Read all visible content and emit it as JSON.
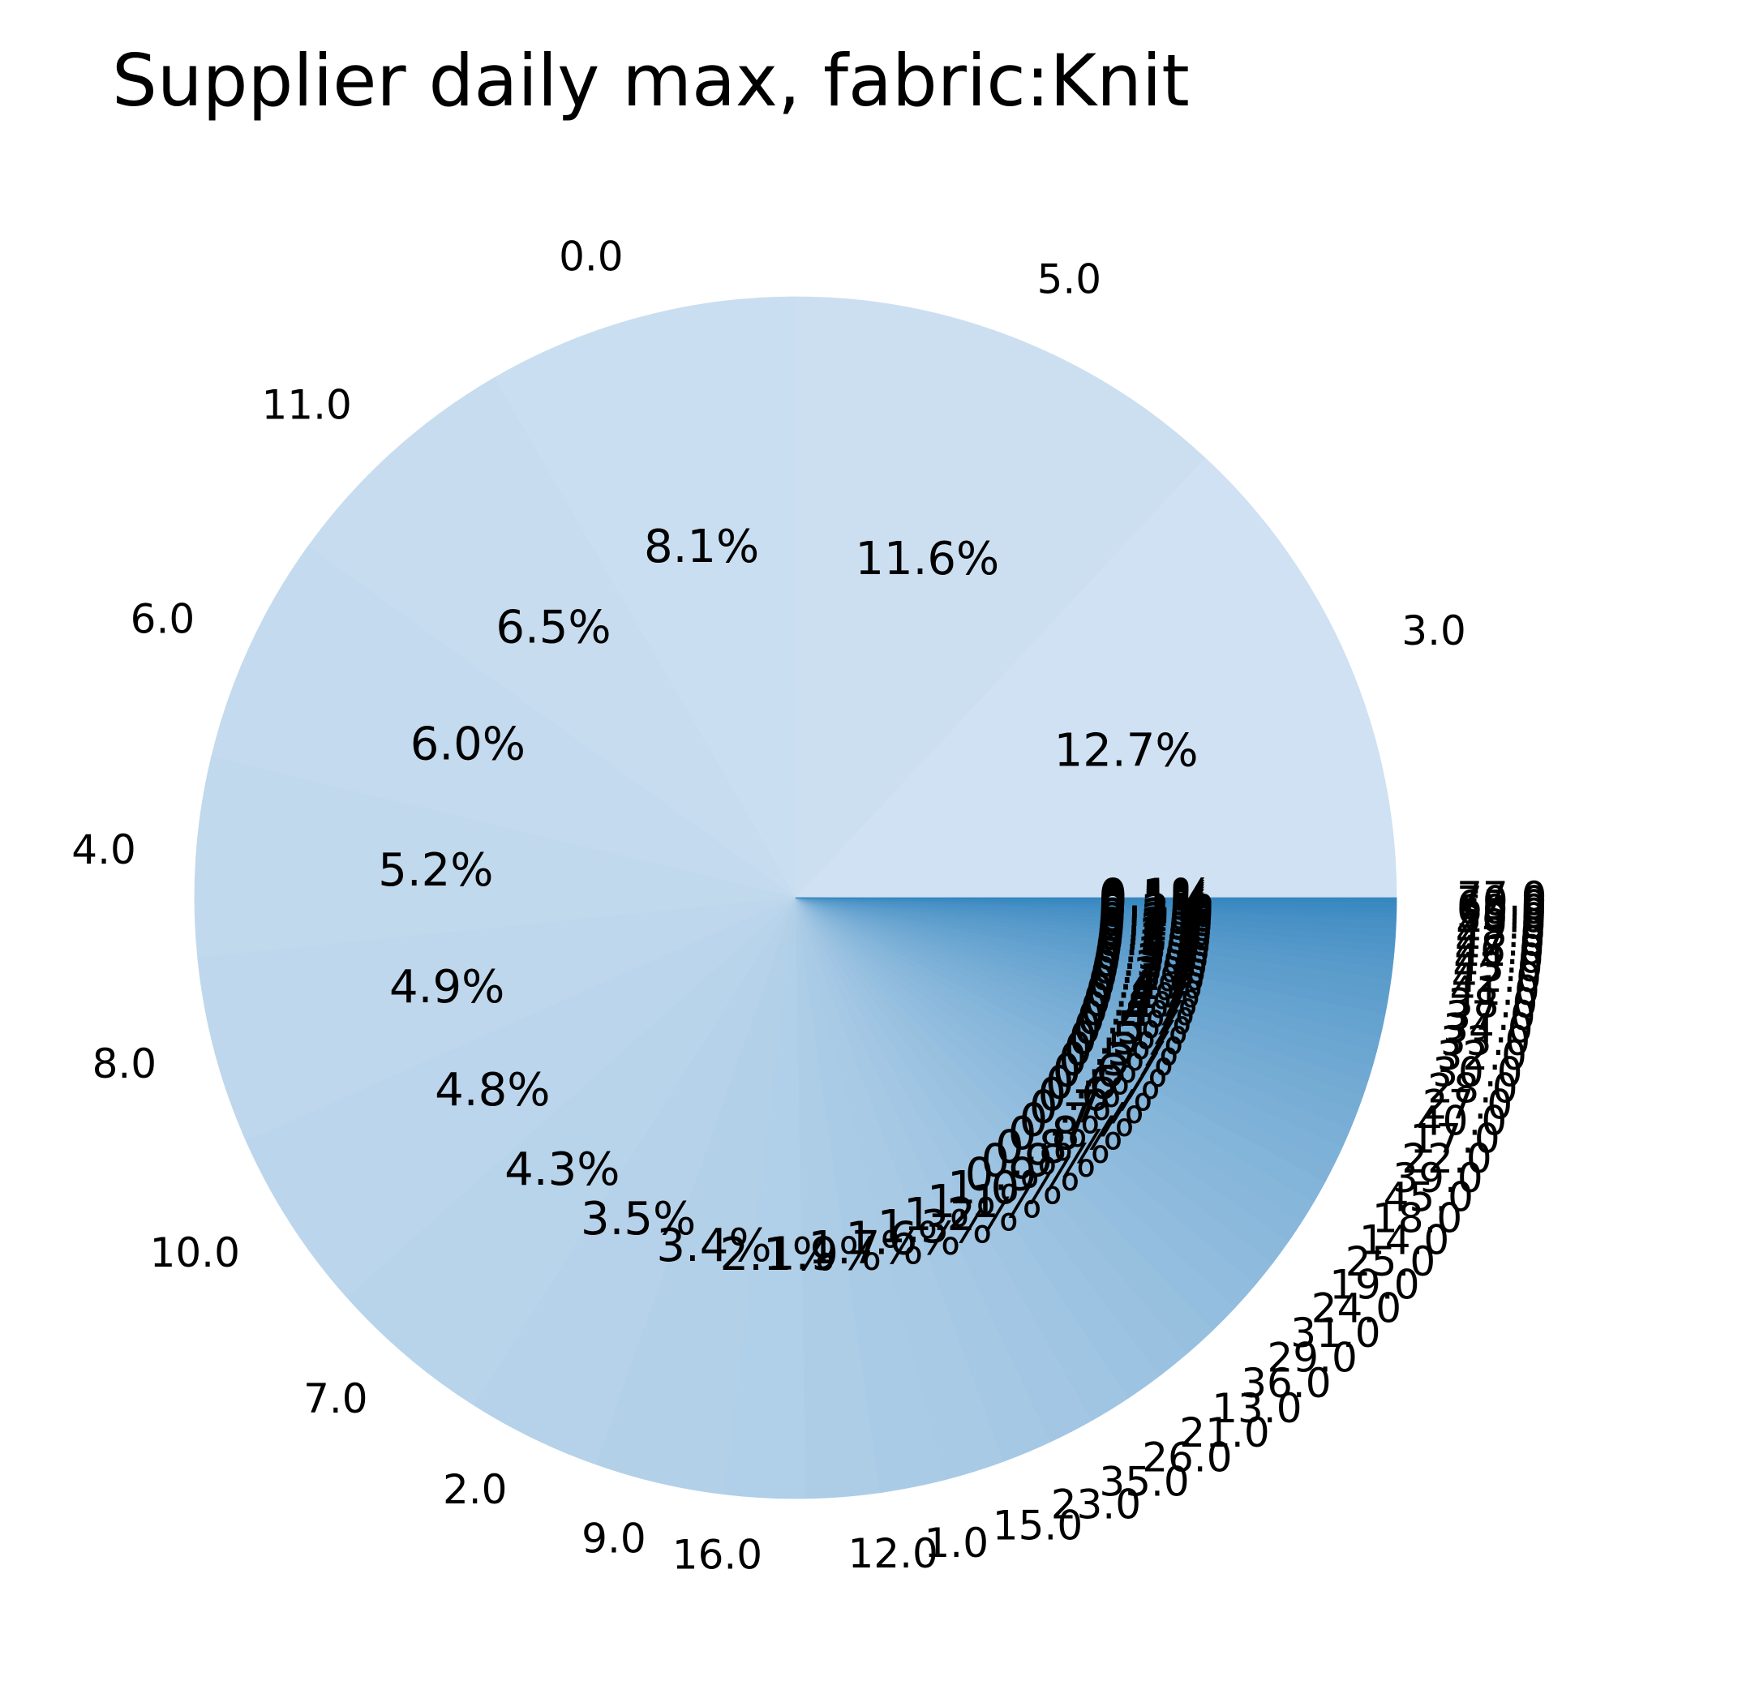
{
  "chart_data": {
    "type": "pie",
    "title": "Supplier daily max, fabric:Knit",
    "slices": [
      {
        "label": "3.0",
        "pct": 12.7,
        "pct_label": "12.7%"
      },
      {
        "label": "5.0",
        "pct": 11.6,
        "pct_label": "11.6%"
      },
      {
        "label": "0.0",
        "pct": 8.1,
        "pct_label": "8.1%"
      },
      {
        "label": "11.0",
        "pct": 6.5,
        "pct_label": "6.5%"
      },
      {
        "label": "6.0",
        "pct": 6.0,
        "pct_label": "6.0%"
      },
      {
        "label": "4.0",
        "pct": 5.2,
        "pct_label": "5.2%"
      },
      {
        "label": "8.0",
        "pct": 4.9,
        "pct_label": "4.9%"
      },
      {
        "label": "10.0",
        "pct": 4.8,
        "pct_label": "4.8%"
      },
      {
        "label": "7.0",
        "pct": 4.3,
        "pct_label": "4.3%"
      },
      {
        "label": "2.0",
        "pct": 3.5,
        "pct_label": "3.5%"
      },
      {
        "label": "9.0",
        "pct": 3.4,
        "pct_label": "3.4%"
      },
      {
        "label": "16.0",
        "pct": 2.1,
        "pct_label": "2.1%"
      },
      {
        "label": "12.0",
        "pct": 1.9,
        "pct_label": "1.9%"
      },
      {
        "label": "1.0",
        "pct": 1.7,
        "pct_label": "1.7%"
      },
      {
        "label": "15.0",
        "pct": 1.6,
        "pct_label": "1.6%"
      },
      {
        "label": "23.0",
        "pct": 1.3,
        "pct_label": "1.3%"
      },
      {
        "label": "35.0",
        "pct": 1.2,
        "pct_label": "1.2%"
      },
      {
        "label": "26.0",
        "pct": 1.1,
        "pct_label": "1.1%"
      },
      {
        "label": "21.0",
        "pct": 1.0,
        "pct_label": "1.0%"
      },
      {
        "label": "13.0",
        "pct": 0.9,
        "pct_label": "0.9%"
      },
      {
        "label": "36.0",
        "pct": 0.9,
        "pct_label": "0.9%"
      },
      {
        "label": "29.0",
        "pct": 0.8,
        "pct_label": "0.8%"
      },
      {
        "label": "31.0",
        "pct": 0.8,
        "pct_label": "0.8%"
      },
      {
        "label": "24.0",
        "pct": 0.7,
        "pct_label": "0.7%"
      },
      {
        "label": "19.0",
        "pct": 0.7,
        "pct_label": "0.7%"
      },
      {
        "label": "25.0",
        "pct": 0.6,
        "pct_label": "0.6%"
      },
      {
        "label": "14.0",
        "pct": 0.6,
        "pct_label": "0.6%"
      },
      {
        "label": "18.0",
        "pct": 0.6,
        "pct_label": "0.6%"
      },
      {
        "label": "45.0",
        "pct": 0.5,
        "pct_label": "0.5%"
      },
      {
        "label": "39.0",
        "pct": 0.5,
        "pct_label": "0.5%"
      },
      {
        "label": "22.0",
        "pct": 0.5,
        "pct_label": "0.5%"
      },
      {
        "label": "17.0",
        "pct": 0.5,
        "pct_label": "0.5%"
      },
      {
        "label": "40.0",
        "pct": 0.4,
        "pct_label": "0.4%"
      },
      {
        "label": "27.0",
        "pct": 0.4,
        "pct_label": "0.4%"
      },
      {
        "label": "28.0",
        "pct": 0.4,
        "pct_label": "0.4%"
      },
      {
        "label": "30.0",
        "pct": 0.4,
        "pct_label": "0.4%"
      },
      {
        "label": "32.0",
        "pct": 0.4,
        "pct_label": "0.4%"
      },
      {
        "label": "33.0",
        "pct": 0.3,
        "pct_label": "0.3%"
      },
      {
        "label": "34.0",
        "pct": 0.3,
        "pct_label": "0.3%"
      },
      {
        "label": "37.0",
        "pct": 0.3,
        "pct_label": "0.3%"
      },
      {
        "label": "38.0",
        "pct": 0.3,
        "pct_label": "0.3%"
      },
      {
        "label": "41.0",
        "pct": 0.3,
        "pct_label": "0.3%"
      },
      {
        "label": "42.0",
        "pct": 0.3,
        "pct_label": "0.3%"
      },
      {
        "label": "43.0",
        "pct": 0.2,
        "pct_label": "0.2%"
      },
      {
        "label": "44.0",
        "pct": 0.2,
        "pct_label": "0.2%"
      },
      {
        "label": "46.0",
        "pct": 0.2,
        "pct_label": "0.2%"
      },
      {
        "label": "47.0",
        "pct": 0.2,
        "pct_label": "0.2%"
      },
      {
        "label": "48.0",
        "pct": 0.2,
        "pct_label": "0.2%"
      },
      {
        "label": "49.0",
        "pct": 0.2,
        "pct_label": "0.2%"
      },
      {
        "label": "50.0",
        "pct": 0.1,
        "pct_label": "0.1%"
      },
      {
        "label": "55.0",
        "pct": 0.1,
        "pct_label": "0.1%"
      },
      {
        "label": "60.0",
        "pct": 0.1,
        "pct_label": "0.1%"
      },
      {
        "label": "65.0",
        "pct": 0.1,
        "pct_label": "0.1%"
      },
      {
        "label": "70.0",
        "pct": 0.1,
        "pct_label": "0.1%"
      },
      {
        "label": "77.0",
        "pct": 0.1,
        "pct_label": "0.1%"
      }
    ],
    "color_range": [
      "#cfe1f2",
      "#3787c0"
    ],
    "legend": "none",
    "grid": false
  }
}
